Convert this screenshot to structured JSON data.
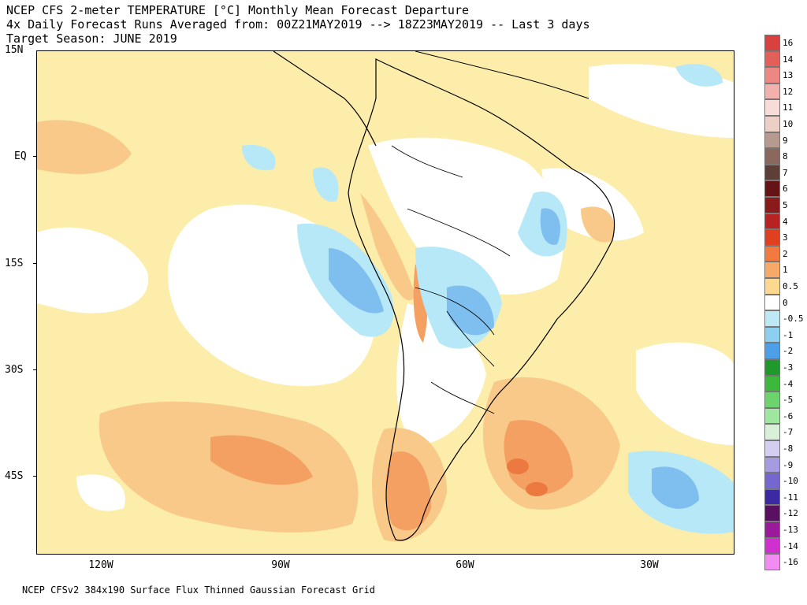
{
  "title": {
    "line1": "NCEP CFS 2-meter TEMPERATURE [°C] Monthly Mean Forecast Departure",
    "line2": "4x Daily Forecast Runs Averaged from: 00Z21MAY2019 --> 18Z23MAY2019 -- Last 3 days",
    "line3": "Target Season: JUNE 2019"
  },
  "lat_labels": [
    "15N",
    "EQ",
    "15S",
    "30S",
    "45S"
  ],
  "lon_labels": [
    "120W",
    "90W",
    "60W",
    "30W"
  ],
  "footer": "NCEP CFSv2 384x190 Surface Flux Thinned Gaussian Forecast Grid",
  "colorbar": {
    "labels": [
      "16",
      "14",
      "13",
      "12",
      "11",
      "10",
      "9",
      "8",
      "7",
      "6",
      "5",
      "4",
      "3",
      "2",
      "1",
      "0.5",
      "0",
      "-0.5",
      "-1",
      "-2",
      "-3",
      "-4",
      "-5",
      "-6",
      "-7",
      "-8",
      "-9",
      "-10",
      "-11",
      "-12",
      "-13",
      "-14",
      "-16"
    ],
    "colors": [
      "#d9413f",
      "#e3605a",
      "#ec8783",
      "#f3b1ad",
      "#f8dcd7",
      "#eccfc5",
      "#b79a8f",
      "#8a685e",
      "#5e3f38",
      "#641414",
      "#8b1a1a",
      "#b82222",
      "#e04020",
      "#f07a40",
      "#f6a968",
      "#fcd890",
      "#ffffff",
      "#bde9f6",
      "#8dcff0",
      "#4d9fe8",
      "#1f9a2a",
      "#3cb83c",
      "#6dd46d",
      "#9fe69f",
      "#d8f0d8",
      "#d4cff0",
      "#a49be0",
      "#7567d0",
      "#3c2aa5",
      "#5a1060",
      "#9a1a9a",
      "#cf30cf",
      "#f28cf2"
    ]
  },
  "colors": {
    "ocean_warm": "#fcedaa",
    "warm": "#f9c98a",
    "hot": "#f3a062",
    "very_hot": "#ec7a40",
    "cool": "#b7e8f7",
    "cold": "#7fbfef",
    "colder": "#4d9fe8",
    "neutral": "#ffffff"
  }
}
